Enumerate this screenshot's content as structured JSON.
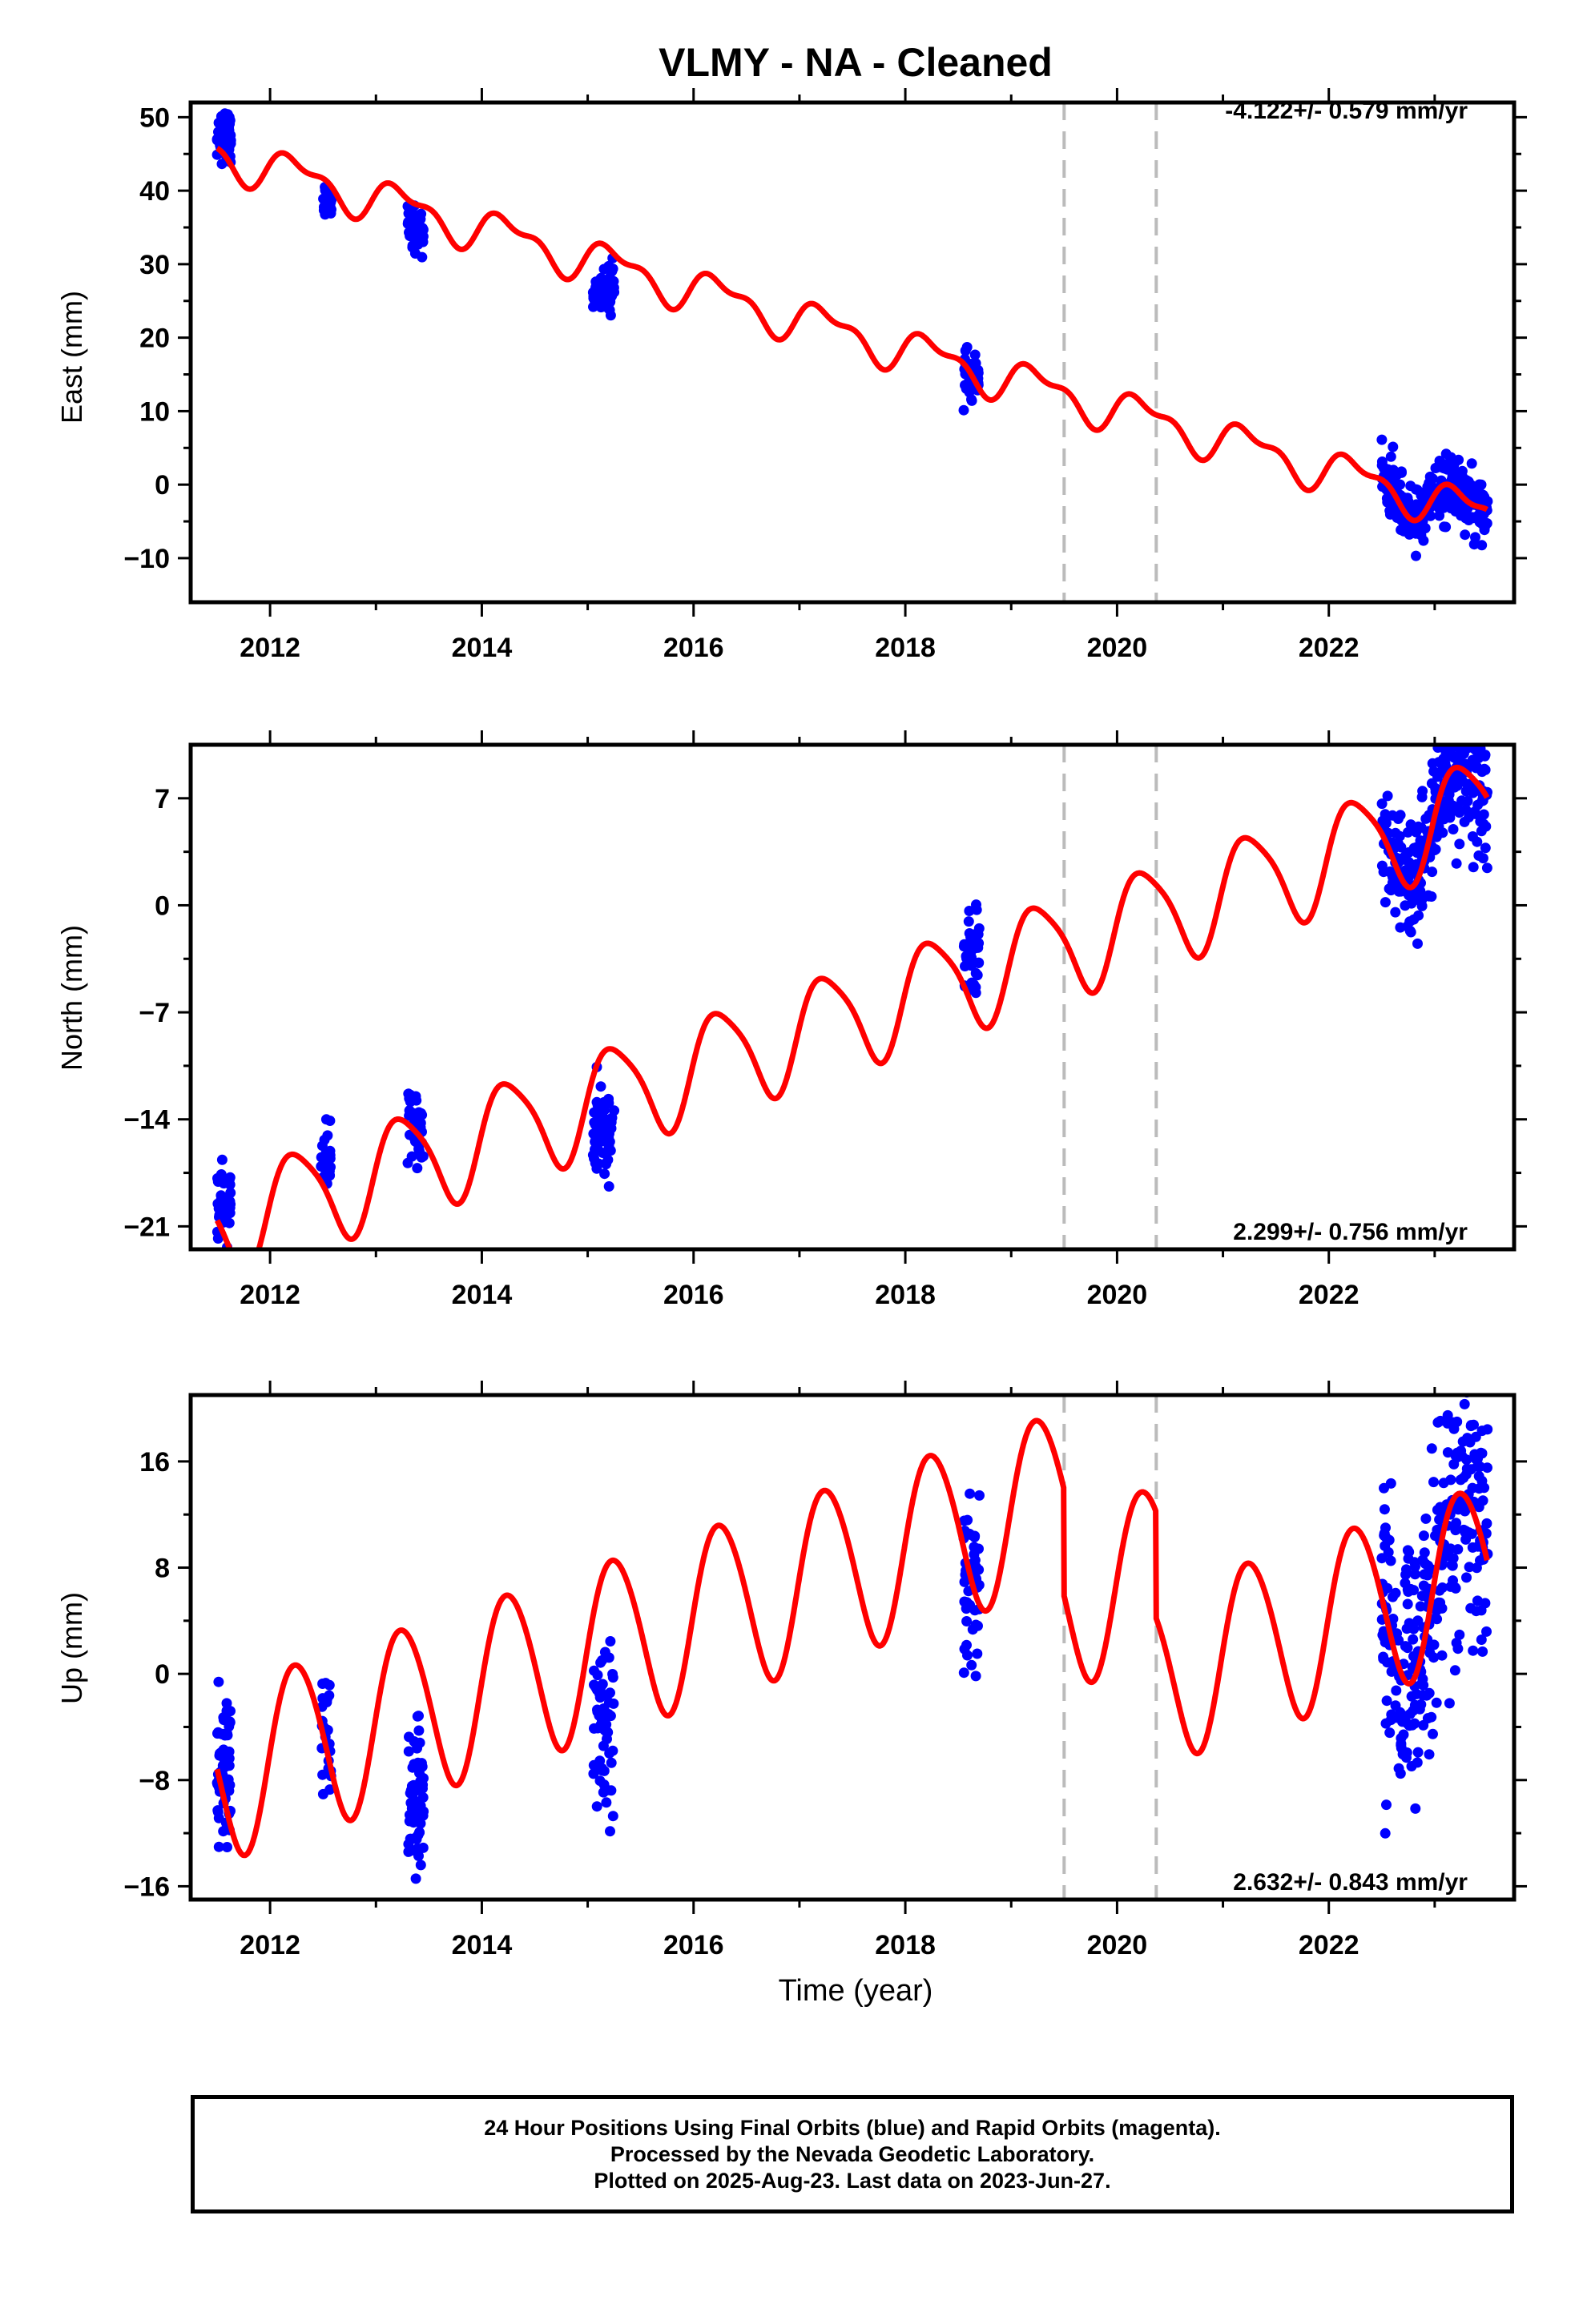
{
  "title": "VLMY  - NA - Cleaned",
  "xlabel": "Time (year)",
  "colors": {
    "data": "#0000ff",
    "model": "#ff0000",
    "offset_line": "#bbbbbb",
    "axes": "#000000"
  },
  "offset_epochs": [
    2019.5,
    2020.37
  ],
  "caption": [
    "24 Hour Positions Using Final Orbits (blue) and Rapid Orbits (magenta).",
    "Processed by the Nevada Geodetic Laboratory.",
    "Plotted on 2025-Aug-23. Last data on 2023-Jun-27."
  ],
  "chart_data": [
    {
      "type": "scatter",
      "panel": "East",
      "ylabel": "East (mm)",
      "rate_label": "-4.122+/- 0.579 mm/yr",
      "rate_position": "top-right",
      "xlim": [
        2011.25,
        2023.75
      ],
      "ylim": [
        -16,
        52
      ],
      "xticks": [
        2012,
        2014,
        2016,
        2018,
        2020,
        2022
      ],
      "yticks": [
        50,
        40,
        30,
        20,
        10,
        0,
        -10
      ],
      "trend": {
        "intercept_at_2011_5": 45.0,
        "slope": -4.1
      },
      "seasonal": {
        "annual_amp": 2.5,
        "semiannual_amp": 1.2
      },
      "steps": [],
      "clusters": [
        {
          "t0": 2011.5,
          "t1": 2011.63,
          "center": 47.5,
          "spread": 1.6,
          "count": 80
        },
        {
          "t0": 2012.5,
          "t1": 2012.58,
          "center": 38.5,
          "spread": 1.2,
          "count": 25
        },
        {
          "t0": 2013.3,
          "t1": 2013.45,
          "center": 34.5,
          "spread": 1.6,
          "count": 45
        },
        {
          "t0": 2015.05,
          "t1": 2015.25,
          "center": 26.5,
          "spread": 1.5,
          "count": 60
        },
        {
          "t0": 2018.55,
          "t1": 2018.7,
          "center": 15.0,
          "spread": 1.4,
          "count": 50
        },
        {
          "t0": 2022.5,
          "t1": 2023.5,
          "center": -3.0,
          "spread": 2.0,
          "count": 300
        }
      ]
    },
    {
      "type": "scatter",
      "panel": "North",
      "ylabel": "North (mm)",
      "rate_label": "2.299+/- 0.756 mm/yr",
      "rate_position": "bottom-right",
      "xlim": [
        2011.25,
        2023.75
      ],
      "ylim": [
        -22.5,
        10.5
      ],
      "xticks": [
        2012,
        2014,
        2016,
        2018,
        2020,
        2022
      ],
      "yticks": [
        7,
        0,
        -7,
        -14,
        -21
      ],
      "trend": {
        "intercept_at_2011_5": -21.0,
        "slope": 2.3
      },
      "seasonal": {
        "annual_amp": 3.3,
        "semiannual_amp": 0.6
      },
      "steps": [],
      "clusters": [
        {
          "t0": 2011.5,
          "t1": 2011.63,
          "center": -19.5,
          "spread": 1.2,
          "count": 40
        },
        {
          "t0": 2012.48,
          "t1": 2012.58,
          "center": -16.5,
          "spread": 1.0,
          "count": 25
        },
        {
          "t0": 2013.3,
          "t1": 2013.45,
          "center": -14.5,
          "spread": 1.3,
          "count": 40
        },
        {
          "t0": 2015.05,
          "t1": 2015.25,
          "center": -15.0,
          "spread": 1.4,
          "count": 60
        },
        {
          "t0": 2018.55,
          "t1": 2018.7,
          "center": -3.0,
          "spread": 1.3,
          "count": 40
        },
        {
          "t0": 2022.5,
          "t1": 2023.5,
          "center": 2.5,
          "spread": 2.2,
          "count": 300
        }
      ]
    },
    {
      "type": "scatter",
      "panel": "Up",
      "ylabel": "Up (mm)",
      "rate_label": "2.632+/- 0.843 mm/yr",
      "rate_position": "bottom-right",
      "xlim": [
        2011.25,
        2023.75
      ],
      "ylim": [
        -17,
        21
      ],
      "xticks": [
        2012,
        2014,
        2016,
        2018,
        2020,
        2022
      ],
      "yticks": [
        16,
        8,
        0,
        -8,
        -16
      ],
      "trend": {
        "intercept_at_2011_5": -7.5,
        "slope": 2.63
      },
      "seasonal": {
        "annual_amp": 6.5,
        "semiannual_amp": 0.5
      },
      "steps": [
        {
          "t": 2019.5,
          "size": -8.0
        },
        {
          "t": 2020.37,
          "size": -8.0
        }
      ],
      "clusters": [
        {
          "t0": 2011.5,
          "t1": 2011.63,
          "center": -7.0,
          "spread": 3.0,
          "count": 60
        },
        {
          "t0": 2012.48,
          "t1": 2012.58,
          "center": -5.0,
          "spread": 3.0,
          "count": 25
        },
        {
          "t0": 2013.3,
          "t1": 2013.45,
          "center": -10.0,
          "spread": 3.0,
          "count": 60
        },
        {
          "t0": 2015.05,
          "t1": 2015.25,
          "center": -4.0,
          "spread": 3.0,
          "count": 60
        },
        {
          "t0": 2018.55,
          "t1": 2018.7,
          "center": 7.0,
          "spread": 3.0,
          "count": 50
        },
        {
          "t0": 2022.5,
          "t1": 2023.5,
          "center": 4.0,
          "spread": 5.0,
          "count": 300
        }
      ]
    }
  ]
}
